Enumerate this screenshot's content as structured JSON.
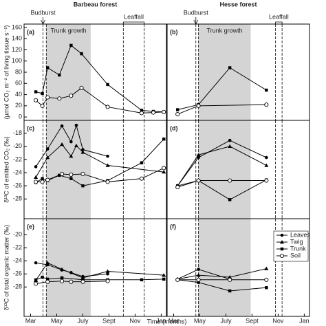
{
  "chart_data": [
    {
      "type": "line",
      "title": "Barbeau forest",
      "panel_label": "(a)",
      "ylabel": "(µmol CO₂ m⁻² of living tissue s⁻¹)",
      "labels": {
        "budburst": "Budburst",
        "trunk_growth": "Trunk growth",
        "leaffall": "Leaffall"
      },
      "budburst": [
        3.95,
        4.2
      ],
      "shade": [
        4.2,
        7.6
      ],
      "leaffall": [
        10.1,
        11.7
      ],
      "xlim": [
        2.5,
        13.4
      ],
      "ylim": [
        -6,
        166
      ],
      "yticks": [
        0,
        20,
        40,
        60,
        80,
        100,
        120,
        140,
        160
      ],
      "series": [
        {
          "marker": "square",
          "color": "#000",
          "x": [
            3.4,
            3.9,
            4.3,
            5.2,
            6.1,
            6.9,
            8.9,
            11.5,
            12.4,
            13.2
          ],
          "values": [
            45,
            42,
            88,
            75,
            128,
            113,
            58,
            12,
            10,
            9
          ]
        },
        {
          "marker": "open-circle",
          "color": "#000",
          "x": [
            3.4,
            3.9,
            4.3,
            5.2,
            6.1,
            6.9,
            8.9,
            11.5,
            12.4,
            13.2
          ],
          "values": [
            30,
            20,
            35,
            33,
            38,
            52,
            18,
            7,
            8,
            9
          ]
        }
      ]
    },
    {
      "type": "line",
      "title": "Hesse forest",
      "panel_label": "(b)",
      "labels": {
        "budburst": "Budburst",
        "trunk_growth": "Trunk growth",
        "leaffall": "Leaffall"
      },
      "budburst": [
        4.7,
        4.9
      ],
      "shade": [
        4.9,
        8.9
      ],
      "leaffall": [
        10.8,
        11.3
      ],
      "xlim": [
        2.5,
        13.4
      ],
      "ylim": [
        -6,
        166
      ],
      "series": [
        {
          "marker": "square",
          "color": "#000",
          "x": [
            3.3,
            4.9,
            7.3,
            10.1
          ],
          "values": [
            13,
            22,
            88,
            48
          ]
        },
        {
          "marker": "open-circle",
          "color": "#000",
          "x": [
            3.3,
            4.9,
            10.1
          ],
          "values": [
            5,
            20,
            22
          ]
        }
      ]
    },
    {
      "type": "line",
      "panel_label": "(c)",
      "ylabel": "δ¹³C of emitted CO₂ (‰)",
      "budburst": [
        3.95,
        4.2
      ],
      "shade": [
        4.2,
        7.6
      ],
      "leaffall": [
        10.1,
        11.7
      ],
      "xlim": [
        2.5,
        13.4
      ],
      "ylim": [
        -31,
        -16.05
      ],
      "yticks": [
        -28,
        -26,
        -24,
        -22,
        -20,
        -18
      ],
      "series": [
        {
          "marker": "circle",
          "color": "#000",
          "x": [
            3.4,
            4.3,
            5.4,
            6.1,
            6.5,
            7.0,
            8.9
          ],
          "values": [
            -23.1,
            -20.4,
            -16.9,
            -19.3,
            -16.8,
            -20.5,
            -21.5
          ]
        },
        {
          "marker": "triangle",
          "color": "#000",
          "x": [
            3.4,
            4.3,
            5.4,
            6.1,
            6.5,
            7.0,
            8.9,
            13.2
          ],
          "values": [
            -24.7,
            -21.7,
            -19.7,
            -21.5,
            -19.9,
            -20.9,
            -22.9,
            -23.9
          ]
        },
        {
          "marker": "square",
          "color": "#000",
          "x": [
            3.4,
            3.9,
            4.3,
            5.2,
            6.1,
            7.0,
            8.9,
            11.5,
            13.2
          ],
          "values": [
            -25.5,
            -24.9,
            -25.2,
            -24.4,
            -24.9,
            -26,
            -25.2,
            -22.5,
            -18.9
          ]
        },
        {
          "marker": "open-circle",
          "color": "#000",
          "x": [
            3.4,
            3.9,
            4.3,
            5.4,
            6.1,
            7.0,
            8.9,
            11.5,
            13.2
          ],
          "values": [
            -25.4,
            -25.4,
            -25.1,
            -24.2,
            -24.3,
            -24.2,
            -25.4,
            -24.9,
            -23.3
          ]
        }
      ]
    },
    {
      "type": "line",
      "panel_label": "(d)",
      "budburst": [
        4.7,
        4.9
      ],
      "shade": [
        4.9,
        8.9
      ],
      "leaffall": [
        10.8,
        11.3
      ],
      "xlim": [
        2.5,
        13.4
      ],
      "ylim": [
        -31,
        -16.05
      ],
      "series": [
        {
          "marker": "circle",
          "color": "#000",
          "x": [
            3.3,
            4.9,
            7.3,
            10.1
          ],
          "values": [
            -26,
            -21.7,
            -19.1,
            -21.7
          ]
        },
        {
          "marker": "triangle",
          "color": "#000",
          "x": [
            3.3,
            4.9,
            7.3,
            10.1
          ],
          "values": [
            -26,
            -21.3,
            -20,
            -22.9
          ]
        },
        {
          "marker": "square",
          "color": "#000",
          "x": [
            3.3,
            4.9,
            7.3,
            10.1
          ],
          "values": [
            -26,
            -25.2,
            -28.1,
            -25.1
          ]
        },
        {
          "marker": "open-circle",
          "color": "#000",
          "x": [
            3.3,
            4.9,
            7.3,
            10.1
          ],
          "values": [
            -26.2,
            -25.2,
            -25.2,
            -25.2
          ]
        }
      ]
    },
    {
      "type": "line",
      "panel_label": "(e)",
      "ylabel": "δ¹³C of total organic matter (‰)",
      "xlabel": "Time (months)",
      "budburst": [
        3.95,
        4.2
      ],
      "shade": [
        4.2,
        7.6
      ],
      "leaffall": [
        10.1,
        11.7
      ],
      "xlim": [
        2.5,
        13.4
      ],
      "ylim": [
        -32.5,
        -17.55
      ],
      "yticks": [
        -28,
        -26,
        -24,
        -22,
        -20
      ],
      "xticks": [
        {
          "value": 3,
          "label": "Mar"
        },
        {
          "value": 5,
          "label": "May"
        },
        {
          "value": 7,
          "label": "July"
        },
        {
          "value": 9,
          "label": "Sept"
        },
        {
          "value": 11,
          "label": "Nov"
        },
        {
          "value": 13,
          "label": "Jan"
        }
      ],
      "series": [
        {
          "marker": "circle",
          "color": "#000",
          "x": [
            3.4,
            4.3,
            5.4,
            6.1,
            7.0,
            8.9
          ],
          "values": [
            -24.3,
            -24.6,
            -25.4,
            -25.8,
            -26.4,
            -26.0
          ]
        },
        {
          "marker": "triangle",
          "color": "#000",
          "x": [
            3.4,
            4.3,
            5.4,
            7.0,
            8.9,
            13.2
          ],
          "values": [
            -27.0,
            -24.3,
            -25.3,
            -26.6,
            -25.6,
            -26.2
          ]
        },
        {
          "marker": "square",
          "color": "#000",
          "x": [
            3.4,
            3.9,
            4.3,
            5.4,
            7.0,
            8.9,
            11.5,
            13.2
          ],
          "values": [
            -26.9,
            -26.5,
            -26.8,
            -26.6,
            -26.9,
            -26.9,
            -26.9,
            -26.8
          ]
        },
        {
          "marker": "open-circle",
          "color": "#000",
          "x": [
            3.4,
            4.3,
            5.4,
            6.1,
            7.0,
            8.9
          ],
          "values": [
            -27.5,
            -27.2,
            -27.1,
            -27.2,
            -27.2,
            -27.1
          ]
        }
      ]
    },
    {
      "type": "line",
      "panel_label": "(f)",
      "budburst": [
        4.7,
        4.9
      ],
      "shade": [
        4.9,
        8.9
      ],
      "leaffall": [
        10.8,
        11.3
      ],
      "xlim": [
        2.5,
        13.4
      ],
      "ylim": [
        -32.5,
        -17.55
      ],
      "xticks": [
        {
          "value": 3,
          "label": "Mar"
        },
        {
          "value": 5,
          "label": "May"
        },
        {
          "value": 7,
          "label": "July"
        },
        {
          "value": 9,
          "label": "Sept"
        },
        {
          "value": 11,
          "label": "Nov"
        },
        {
          "value": 13,
          "label": "Jan"
        }
      ],
      "series": [
        {
          "name": "Leaves",
          "marker": "circle",
          "color": "#000",
          "x": [
            3.3,
            4.9,
            7.3
          ],
          "values": [
            -26.8,
            -25.3,
            -26.8
          ]
        },
        {
          "name": "Twig",
          "marker": "triangle",
          "color": "#000",
          "x": [
            3.3,
            4.9,
            7.3,
            10.1
          ],
          "values": [
            -26.8,
            -26.2,
            -26.5,
            -25.2
          ]
        },
        {
          "name": "Trunk",
          "marker": "square",
          "color": "#000",
          "x": [
            3.3,
            4.9,
            7.3,
            10.1
          ],
          "values": [
            -26.9,
            -27.3,
            -28.6,
            -28.1
          ]
        },
        {
          "name": "Soil",
          "marker": "open-circle",
          "color": "#000",
          "x": [
            3.3,
            4.9,
            7.3,
            10.1
          ],
          "values": [
            -26.9,
            -26.9,
            -26.9,
            -26.9
          ]
        }
      ]
    }
  ]
}
